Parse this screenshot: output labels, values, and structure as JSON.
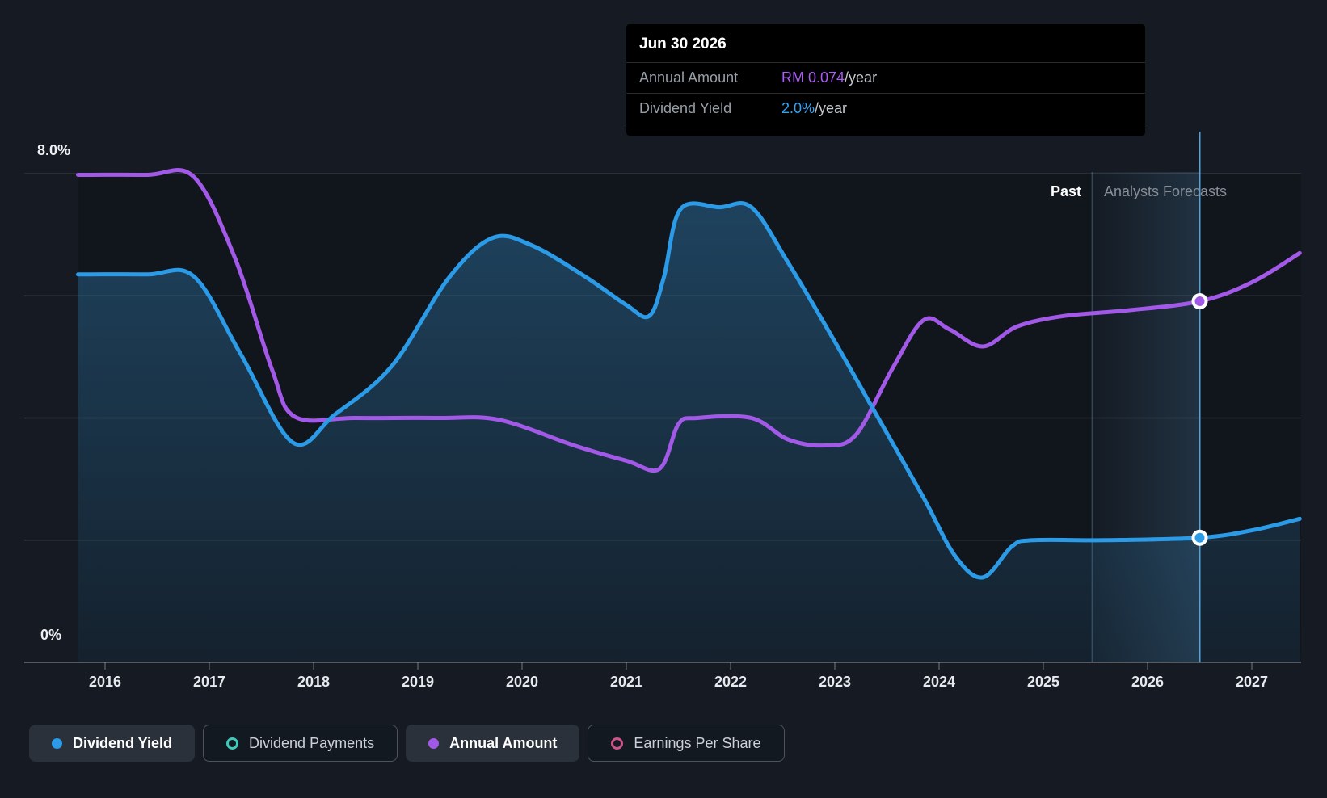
{
  "tooltip": {
    "date": "Jun 30 2026",
    "rows": [
      {
        "label": "Annual Amount",
        "value": "RM 0.074",
        "suffix": "/year",
        "color": "#ab5cf2"
      },
      {
        "label": "Dividend Yield",
        "value": "2.0%",
        "suffix": "/year",
        "color": "#2fa4f5"
      }
    ]
  },
  "legend": [
    {
      "label": "Dividend Yield",
      "color": "#2b9be8",
      "style": "filled",
      "active": true
    },
    {
      "label": "Dividend Payments",
      "color": "#3fc9ba",
      "style": "ring",
      "active": false
    },
    {
      "label": "Annual Amount",
      "color": "#a359e8",
      "style": "filled",
      "active": true
    },
    {
      "label": "Earnings Per Share",
      "color": "#d1538c",
      "style": "ring",
      "active": false
    }
  ],
  "chart_data": {
    "type": "line",
    "title": "Dividend history and forecast",
    "x_axis_labels": [
      "2016",
      "2017",
      "2018",
      "2019",
      "2020",
      "2021",
      "2022",
      "2023",
      "2024",
      "2025",
      "2026",
      "2027"
    ],
    "x_range": [
      2015.74,
      2027.46
    ],
    "y_axis": {
      "labels": [
        "8.0%",
        "0%"
      ],
      "min_pct": 0,
      "max_pct": 8,
      "gridline_step_pct": 2,
      "grid_on": true
    },
    "annotations": {
      "past": "Past",
      "forecast": "Analysts Forecasts",
      "forecast_divider_year": 2025.47
    },
    "marker_year": 2026.5,
    "marker_date": "Jun 30 2026",
    "series": [
      {
        "name": "Dividend Yield",
        "color": "#2b9be8",
        "style": "line-with-area",
        "unit": "% per year",
        "marker_value_label": "2.0%/year",
        "points": [
          [
            2015.74,
            6.35
          ],
          [
            2016.4,
            6.35
          ],
          [
            2016.85,
            6.32
          ],
          [
            2017.3,
            5.05
          ],
          [
            2017.8,
            3.6
          ],
          [
            2018.2,
            4.05
          ],
          [
            2018.75,
            4.85
          ],
          [
            2019.3,
            6.3
          ],
          [
            2019.72,
            6.95
          ],
          [
            2020.1,
            6.82
          ],
          [
            2020.6,
            6.32
          ],
          [
            2021.0,
            5.85
          ],
          [
            2021.22,
            5.67
          ],
          [
            2021.36,
            6.3
          ],
          [
            2021.52,
            7.42
          ],
          [
            2021.9,
            7.45
          ],
          [
            2022.2,
            7.45
          ],
          [
            2022.55,
            6.55
          ],
          [
            2023.0,
            5.25
          ],
          [
            2023.35,
            4.2
          ],
          [
            2023.85,
            2.7
          ],
          [
            2024.15,
            1.75
          ],
          [
            2024.42,
            1.39
          ],
          [
            2024.7,
            1.9
          ],
          [
            2024.9,
            2.0
          ],
          [
            2025.6,
            2.0
          ],
          [
            2026.5,
            2.04
          ],
          [
            2027.0,
            2.16
          ],
          [
            2027.46,
            2.35
          ]
        ]
      },
      {
        "name": "Annual Amount",
        "color": "#a359e8",
        "style": "line",
        "unit": "RM per year (hidden scale, value shown at marker: RM 0.074/year)",
        "marker_value_label": "RM 0.074/year",
        "points": [
          [
            2015.74,
            7.98
          ],
          [
            2016.4,
            7.98
          ],
          [
            2016.85,
            7.95
          ],
          [
            2017.25,
            6.6
          ],
          [
            2017.6,
            4.8
          ],
          [
            2017.82,
            4.02
          ],
          [
            2018.4,
            4.0
          ],
          [
            2019.2,
            4.0
          ],
          [
            2019.78,
            3.97
          ],
          [
            2020.5,
            3.55
          ],
          [
            2021.0,
            3.3
          ],
          [
            2021.32,
            3.17
          ],
          [
            2021.5,
            3.9
          ],
          [
            2021.68,
            4.0
          ],
          [
            2022.2,
            4.0
          ],
          [
            2022.55,
            3.65
          ],
          [
            2022.9,
            3.55
          ],
          [
            2023.2,
            3.72
          ],
          [
            2023.55,
            4.8
          ],
          [
            2023.85,
            5.6
          ],
          [
            2024.1,
            5.45
          ],
          [
            2024.42,
            5.17
          ],
          [
            2024.75,
            5.5
          ],
          [
            2025.2,
            5.67
          ],
          [
            2025.8,
            5.76
          ],
          [
            2026.5,
            5.91
          ],
          [
            2027.0,
            6.22
          ],
          [
            2027.46,
            6.7
          ]
        ]
      }
    ],
    "legend_position": "bottom-left"
  },
  "colors": {
    "background": "#161b23",
    "plot_shade": "rgba(0,0,0,0.20)",
    "gridline": "rgba(255,255,255,0.12)",
    "axis": "rgba(255,255,255,0.28)",
    "hover_line": "#5aa0d0",
    "forecast_band": "rgba(96,165,215,0.18)"
  }
}
